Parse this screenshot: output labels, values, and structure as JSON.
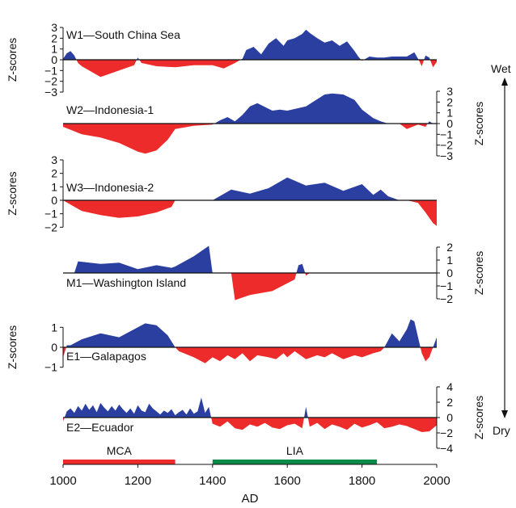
{
  "chart_data": {
    "type": "area",
    "xlabel": "AD",
    "xlim": [
      1000,
      2000
    ],
    "xticks": [
      1000,
      1200,
      1400,
      1600,
      1800,
      2000
    ],
    "colors": {
      "positive": "#2b3fa0",
      "negative": "#ee2b2b"
    },
    "side_labels": {
      "top": "Wet",
      "bottom": "Dry"
    },
    "panels": [
      {
        "label": "W1—South China Sea",
        "ylabel": "Z-scores",
        "ylabel_side": "left",
        "ylim": [
          -3,
          3
        ],
        "yticks": [
          {
            "v": 3,
            "t": "3"
          },
          {
            "v": 2,
            "t": "2"
          },
          {
            "v": 1,
            "t": "1"
          },
          {
            "v": 0,
            "t": "0"
          },
          {
            "v": -1,
            "t": "−1"
          },
          {
            "v": -2,
            "t": "−2"
          },
          {
            "v": -3,
            "t": "−3"
          }
        ],
        "x": [
          1000,
          1010,
          1020,
          1030,
          1040,
          1050,
          1100,
          1150,
          1190,
          1200,
          1210,
          1250,
          1300,
          1350,
          1400,
          1430,
          1460,
          1480,
          1490,
          1510,
          1530,
          1550,
          1570,
          1590,
          1600,
          1620,
          1640,
          1650,
          1660,
          1680,
          1700,
          1720,
          1740,
          1760,
          1780,
          1790,
          1800,
          1820,
          1840,
          1860,
          1880,
          1900,
          1920,
          1940,
          1950,
          1960,
          1970,
          1980,
          1990,
          2000
        ],
        "y": [
          0.1,
          0.6,
          0.8,
          0.4,
          -0.3,
          -0.6,
          -1.6,
          -1.0,
          -0.5,
          0.2,
          -0.3,
          -0.6,
          -0.7,
          -0.5,
          -0.5,
          -0.8,
          -0.3,
          0.1,
          0.9,
          1.2,
          0.5,
          1.5,
          2.0,
          1.3,
          1.8,
          2.0,
          2.4,
          2.8,
          2.5,
          2.0,
          1.6,
          1.8,
          1.3,
          1.7,
          0.8,
          0.3,
          -0.1,
          0.3,
          0.2,
          0.2,
          0.3,
          0.3,
          0.3,
          0.7,
          0.1,
          -0.6,
          0.4,
          0.2,
          -0.7,
          -0.2
        ]
      },
      {
        "label": "W2—Indonesia-1",
        "ylabel": "Z-scores",
        "ylabel_side": "right",
        "ylim": [
          -3,
          3
        ],
        "yticks": [
          {
            "v": 3,
            "t": "3"
          },
          {
            "v": 2,
            "t": "2"
          },
          {
            "v": 1,
            "t": "1"
          },
          {
            "v": 0,
            "t": "0"
          },
          {
            "v": -1,
            "t": "−1"
          },
          {
            "v": -2,
            "t": "−2"
          },
          {
            "v": -3,
            "t": "−3"
          }
        ],
        "x": [
          1000,
          1050,
          1100,
          1150,
          1200,
          1220,
          1250,
          1280,
          1300,
          1350,
          1400,
          1420,
          1440,
          1460,
          1480,
          1500,
          1520,
          1560,
          1580,
          1600,
          1650,
          1700,
          1720,
          1750,
          1780,
          1800,
          1830,
          1850,
          1870,
          1900,
          1920,
          1950,
          1970,
          1980,
          1990,
          2000
        ],
        "y": [
          -0.3,
          -1.0,
          -1.3,
          -1.8,
          -2.6,
          -2.8,
          -2.5,
          -1.5,
          -0.5,
          -0.2,
          -0.1,
          0.3,
          0.6,
          0.2,
          0.8,
          1.6,
          1.9,
          1.2,
          1.3,
          1.2,
          1.6,
          2.7,
          2.8,
          2.7,
          2.2,
          1.3,
          0.5,
          0.2,
          0.0,
          0.0,
          -0.5,
          -0.1,
          -0.3,
          0.2,
          0.0,
          0.0
        ]
      },
      {
        "label": "W3—Indonesia-2",
        "ylabel": "Z-scores",
        "ylabel_side": "left",
        "ylim": [
          -2,
          3
        ],
        "yticks": [
          {
            "v": 3,
            "t": "3"
          },
          {
            "v": 2,
            "t": "2"
          },
          {
            "v": 1,
            "t": "1"
          },
          {
            "v": 0,
            "t": "0"
          },
          {
            "v": -1,
            "t": "−1"
          },
          {
            "v": -2,
            "t": "−2"
          }
        ],
        "x": [
          1000,
          1050,
          1100,
          1150,
          1200,
          1250,
          1290,
          1300,
          1350,
          1400,
          1450,
          1500,
          1550,
          1600,
          1650,
          1700,
          1750,
          1800,
          1830,
          1850,
          1870,
          1900,
          1920,
          1950,
          1970,
          1980,
          1990,
          2000
        ],
        "y": [
          0.0,
          -0.8,
          -1.1,
          -1.3,
          -1.2,
          -0.9,
          -0.5,
          0.0,
          0.0,
          0.0,
          0.8,
          0.5,
          0.9,
          1.7,
          1.1,
          1.3,
          0.7,
          1.2,
          0.4,
          0.8,
          0.3,
          0.0,
          0.0,
          -0.2,
          -0.9,
          -1.3,
          -1.7,
          -1.9
        ]
      },
      {
        "label": "M1—Washington Island",
        "ylabel": "Z-scores",
        "ylabel_side": "right",
        "ylim": [
          -3,
          2.2
        ],
        "yticks": [
          {
            "v": 2,
            "t": "2"
          },
          {
            "v": 1,
            "t": "1"
          },
          {
            "v": 0,
            "t": "0"
          },
          {
            "v": -1,
            "t": "−1"
          },
          {
            "v": -2,
            "t": "−2"
          }
        ],
        "x": [
          1000,
          1030,
          1040,
          1100,
          1150,
          1200,
          1250,
          1290,
          1300,
          1350,
          1385,
          1390,
          1400,
          1420,
          1430,
          1440,
          1450,
          1460,
          1480,
          1500,
          1560,
          1600,
          1620,
          1630,
          1640,
          1650,
          1660,
          2000
        ],
        "y": [
          0,
          0,
          0.9,
          0.7,
          0.8,
          0.3,
          0.6,
          0.4,
          0.5,
          1.3,
          2.0,
          2.1,
          0,
          0,
          0,
          0,
          0,
          -2.1,
          -1.9,
          -1.7,
          -1.4,
          -0.8,
          -0.5,
          0.6,
          0.7,
          -0.2,
          0,
          0
        ]
      },
      {
        "label": "E1—Galapagos",
        "ylabel": "Z-scores",
        "ylabel_side": "left",
        "ylim": [
          -1.7,
          1.7
        ],
        "yticks": [
          {
            "v": 1,
            "t": "1"
          },
          {
            "v": 0,
            "t": "0"
          },
          {
            "v": -1,
            "t": "−1"
          }
        ],
        "x": [
          1000,
          1010,
          1020,
          1050,
          1100,
          1150,
          1200,
          1220,
          1250,
          1280,
          1300,
          1310,
          1350,
          1380,
          1400,
          1420,
          1440,
          1460,
          1480,
          1500,
          1520,
          1550,
          1570,
          1590,
          1600,
          1620,
          1650,
          1680,
          1700,
          1720,
          1750,
          1780,
          1800,
          1830,
          1850,
          1860,
          1880,
          1900,
          1920,
          1930,
          1940,
          1950,
          1960,
          1970,
          1980,
          1990,
          2000
        ],
        "y": [
          -0.5,
          0.1,
          0.1,
          0.4,
          0.7,
          0.5,
          1.0,
          1.2,
          1.1,
          0.6,
          0.0,
          -0.2,
          -0.5,
          -0.8,
          -0.5,
          -0.7,
          -0.4,
          -0.6,
          -0.3,
          -0.7,
          -0.4,
          -0.5,
          -0.6,
          -0.3,
          -0.5,
          -0.2,
          -0.6,
          -0.4,
          -0.5,
          -0.3,
          -0.6,
          -0.4,
          -0.5,
          -0.3,
          -0.2,
          0.0,
          0.7,
          0.3,
          0.9,
          1.4,
          1.3,
          0.5,
          -0.3,
          -0.7,
          -0.5,
          0.0,
          0.5
        ]
      },
      {
        "label": "E2—Ecuador",
        "ylabel": "Z-scores",
        "ylabel_side": "right",
        "ylim": [
          -4,
          4
        ],
        "yticks": [
          {
            "v": 4,
            "t": "4"
          },
          {
            "v": 2,
            "t": "2"
          },
          {
            "v": 0,
            "t": "0"
          },
          {
            "v": -2,
            "t": "−2"
          },
          {
            "v": -4,
            "t": "−4"
          }
        ],
        "x": [
          1000,
          1010,
          1020,
          1030,
          1040,
          1050,
          1060,
          1070,
          1080,
          1090,
          1100,
          1110,
          1120,
          1130,
          1140,
          1150,
          1160,
          1170,
          1180,
          1190,
          1200,
          1210,
          1220,
          1230,
          1240,
          1250,
          1260,
          1270,
          1280,
          1290,
          1300,
          1310,
          1320,
          1330,
          1340,
          1350,
          1360,
          1370,
          1380,
          1390,
          1400,
          1420,
          1440,
          1460,
          1480,
          1500,
          1520,
          1540,
          1560,
          1580,
          1600,
          1620,
          1640,
          1650,
          1660,
          1680,
          1700,
          1720,
          1740,
          1760,
          1780,
          1800,
          1820,
          1840,
          1860,
          1880,
          1900,
          1920,
          1940,
          1960,
          1980,
          2000
        ],
        "y": [
          -0.5,
          0.8,
          1.2,
          0.6,
          1.5,
          0.9,
          1.8,
          1.0,
          1.6,
          0.7,
          1.9,
          1.3,
          0.8,
          1.5,
          0.9,
          1.7,
          1.1,
          0.6,
          1.2,
          0.5,
          1.6,
          0.9,
          0.7,
          1.8,
          1.2,
          0.8,
          0.4,
          0.9,
          0.6,
          1.1,
          0.3,
          0.7,
          1.0,
          0.4,
          1.2,
          0.5,
          0.8,
          2.6,
          0.6,
          1.4,
          -0.8,
          -1.2,
          -0.5,
          -1.4,
          -1.6,
          -0.9,
          -1.2,
          -0.7,
          -1.3,
          -1.5,
          -1.0,
          -0.8,
          -1.4,
          1.4,
          -1.2,
          -0.7,
          -1.5,
          -0.9,
          -1.2,
          -1.6,
          -0.8,
          -1.3,
          -1.0,
          -0.6,
          -1.4,
          -1.2,
          -0.9,
          -1.1,
          -1.5,
          -1.9,
          -1.8,
          -1.0
        ]
      }
    ],
    "periods": [
      {
        "label": "MCA",
        "start": 1000,
        "end": 1300,
        "color": "#ee2b2b"
      },
      {
        "label": "LIA",
        "start": 1400,
        "end": 1840,
        "color": "#0b8a4a"
      }
    ]
  }
}
